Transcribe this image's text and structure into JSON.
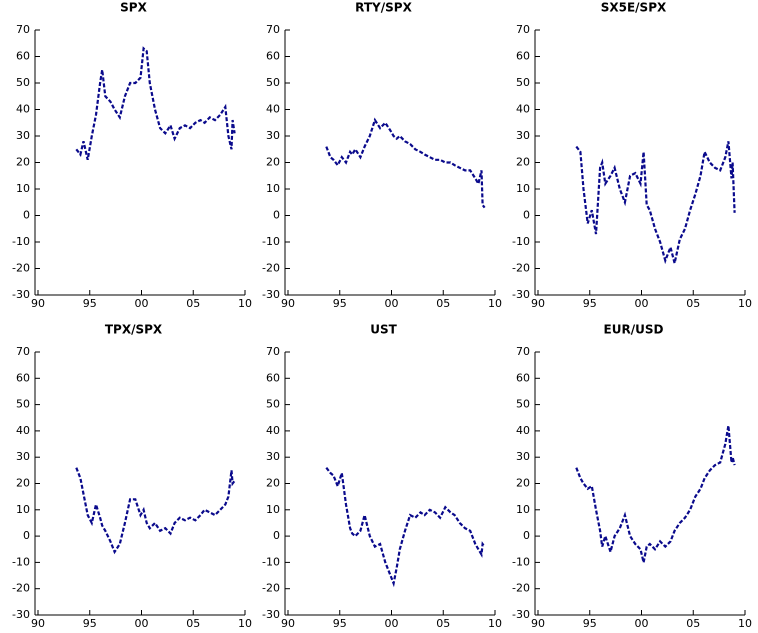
{
  "chart_data": [
    {
      "type": "line",
      "title": "SPX",
      "color": "#0a0a8c",
      "x": [
        1993.7,
        1994.1,
        1994.4,
        1994.8,
        1995.2,
        1995.6,
        1996.0,
        1996.2,
        1996.5,
        1997.0,
        1997.4,
        1997.9,
        1998.4,
        1998.9,
        1999.4,
        1999.9,
        2000.2,
        2000.5,
        2000.8,
        2001.3,
        2001.8,
        2002.3,
        2002.8,
        2003.2,
        2003.7,
        2004.2,
        2004.7,
        2005.2,
        2005.7,
        2006.1,
        2006.6,
        2007.1,
        2007.6,
        2008.1,
        2008.4,
        2008.7,
        2008.8,
        2009.0
      ],
      "values": [
        25,
        23,
        28,
        21,
        30,
        38,
        50,
        55,
        45,
        43,
        40,
        37,
        45,
        50,
        50,
        52,
        63,
        62,
        50,
        40,
        33,
        31,
        34,
        29,
        33,
        34,
        33,
        35,
        36,
        35,
        37,
        36,
        38,
        41,
        30,
        25,
        36,
        31
      ],
      "xlim": [
        1990,
        2010
      ],
      "ylim": [
        -30,
        70
      ],
      "xticks": [
        {
          "value": 1990,
          "label": "90"
        },
        {
          "value": 1995,
          "label": "95"
        },
        {
          "value": 2000,
          "label": "00"
        },
        {
          "value": 2005,
          "label": "05"
        },
        {
          "value": 2010,
          "label": "10"
        }
      ],
      "yticks": [
        -30,
        -20,
        -10,
        0,
        10,
        20,
        30,
        40,
        50,
        60,
        70
      ]
    },
    {
      "type": "line",
      "title": "RTY/SPX",
      "color": "#0a0a8c",
      "x": [
        1993.7,
        1994.1,
        1994.4,
        1994.8,
        1995.2,
        1995.6,
        1996.0,
        1996.2,
        1996.5,
        1997.0,
        1997.4,
        1997.9,
        1998.4,
        1998.9,
        1999.4,
        1999.9,
        2000.2,
        2000.5,
        2000.8,
        2001.3,
        2001.8,
        2002.3,
        2002.8,
        2003.2,
        2003.7,
        2004.2,
        2004.7,
        2005.2,
        2005.7,
        2006.1,
        2006.6,
        2007.1,
        2007.6,
        2008.1,
        2008.4,
        2008.7,
        2008.8,
        2009.0
      ],
      "values": [
        26,
        22,
        21,
        19,
        22,
        20,
        24,
        23,
        25,
        22,
        26,
        30,
        36,
        33,
        35,
        32,
        30,
        29,
        30,
        28,
        27,
        25,
        24,
        23,
        22,
        21,
        21,
        20,
        20,
        19,
        18,
        17,
        17,
        14,
        12,
        17,
        4,
        3
      ],
      "xlim": [
        1990,
        2010
      ],
      "ylim": [
        -30,
        70
      ],
      "xticks": [
        {
          "value": 1990,
          "label": "90"
        },
        {
          "value": 1995,
          "label": "95"
        },
        {
          "value": 2000,
          "label": "00"
        },
        {
          "value": 2005,
          "label": "05"
        },
        {
          "value": 2010,
          "label": "10"
        }
      ],
      "yticks": [
        -30,
        -20,
        -10,
        0,
        10,
        20,
        30,
        40,
        50,
        60,
        70
      ]
    },
    {
      "type": "line",
      "title": "SX5E/SPX",
      "color": "#0a0a8c",
      "x": [
        1993.7,
        1994.1,
        1994.4,
        1994.8,
        1995.2,
        1995.6,
        1996.0,
        1996.2,
        1996.5,
        1997.0,
        1997.4,
        1997.9,
        1998.4,
        1998.9,
        1999.4,
        1999.9,
        2000.2,
        2000.5,
        2000.8,
        2001.3,
        2001.8,
        2002.3,
        2002.8,
        2003.2,
        2003.7,
        2004.2,
        2004.7,
        2005.2,
        2005.7,
        2006.1,
        2006.6,
        2007.1,
        2007.6,
        2008.1,
        2008.4,
        2008.7,
        2008.8,
        2009.0
      ],
      "values": [
        26,
        24,
        10,
        -3,
        2,
        -7,
        18,
        20,
        12,
        15,
        18,
        10,
        5,
        15,
        16,
        12,
        24,
        4,
        2,
        -5,
        -10,
        -17,
        -12,
        -18,
        -9,
        -5,
        2,
        8,
        15,
        24,
        20,
        18,
        17,
        22,
        28,
        14,
        20,
        1
      ],
      "xlim": [
        1990,
        2010
      ],
      "ylim": [
        -30,
        70
      ],
      "xticks": [
        {
          "value": 1990,
          "label": "90"
        },
        {
          "value": 1995,
          "label": "95"
        },
        {
          "value": 2000,
          "label": "00"
        },
        {
          "value": 2005,
          "label": "05"
        },
        {
          "value": 2010,
          "label": "10"
        }
      ],
      "yticks": [
        -30,
        -20,
        -10,
        0,
        10,
        20,
        30,
        40,
        50,
        60,
        70
      ]
    },
    {
      "type": "line",
      "title": "TPX/SPX",
      "color": "#0a0a8c",
      "x": [
        1993.7,
        1994.1,
        1994.4,
        1994.8,
        1995.2,
        1995.6,
        1996.0,
        1996.2,
        1996.5,
        1997.0,
        1997.4,
        1997.9,
        1998.4,
        1998.9,
        1999.4,
        1999.9,
        2000.2,
        2000.5,
        2000.8,
        2001.3,
        2001.8,
        2002.3,
        2002.8,
        2003.2,
        2003.7,
        2004.2,
        2004.7,
        2005.2,
        2005.7,
        2006.1,
        2006.6,
        2007.1,
        2007.6,
        2008.1,
        2008.4,
        2008.7,
        2008.8,
        2009.0
      ],
      "values": [
        26,
        22,
        16,
        8,
        5,
        12,
        7,
        4,
        2,
        -2,
        -6,
        -3,
        5,
        14,
        14,
        8,
        10,
        5,
        3,
        5,
        2,
        3,
        1,
        5,
        7,
        6,
        7,
        6,
        8,
        10,
        9,
        8,
        10,
        12,
        15,
        25,
        20,
        21
      ],
      "xlim": [
        1990,
        2010
      ],
      "ylim": [
        -30,
        70
      ],
      "xticks": [
        {
          "value": 1990,
          "label": "90"
        },
        {
          "value": 1995,
          "label": "95"
        },
        {
          "value": 2000,
          "label": "00"
        },
        {
          "value": 2005,
          "label": "05"
        },
        {
          "value": 2010,
          "label": "10"
        }
      ],
      "yticks": [
        -30,
        -20,
        -10,
        0,
        10,
        20,
        30,
        40,
        50,
        60,
        70
      ]
    },
    {
      "type": "line",
      "title": "UST",
      "color": "#0a0a8c",
      "x": [
        1993.7,
        1994.1,
        1994.4,
        1994.8,
        1995.2,
        1995.6,
        1996.0,
        1996.2,
        1996.5,
        1997.0,
        1997.4,
        1997.9,
        1998.4,
        1998.9,
        1999.4,
        1999.9,
        2000.2,
        2000.5,
        2000.8,
        2001.3,
        2001.8,
        2002.3,
        2002.8,
        2003.2,
        2003.7,
        2004.2,
        2004.7,
        2005.2,
        2005.7,
        2006.1,
        2006.6,
        2007.1,
        2007.6,
        2008.1,
        2008.4,
        2008.7,
        2008.8,
        2009.0
      ],
      "values": [
        26,
        24,
        23,
        19,
        24,
        12,
        3,
        1,
        0,
        2,
        8,
        0,
        -4,
        -3,
        -10,
        -15,
        -18,
        -12,
        -5,
        2,
        8,
        7,
        9,
        8,
        10,
        9,
        7,
        11,
        9,
        8,
        5,
        3,
        2,
        -3,
        -5,
        -7,
        -3,
        -4
      ],
      "xlim": [
        1990,
        2010
      ],
      "ylim": [
        -30,
        70
      ],
      "xticks": [
        {
          "value": 1990,
          "label": "90"
        },
        {
          "value": 1995,
          "label": "95"
        },
        {
          "value": 2000,
          "label": "00"
        },
        {
          "value": 2005,
          "label": "05"
        },
        {
          "value": 2010,
          "label": "10"
        }
      ],
      "yticks": [
        -30,
        -20,
        -10,
        0,
        10,
        20,
        30,
        40,
        50,
        60,
        70
      ]
    },
    {
      "type": "line",
      "title": "EUR/USD",
      "color": "#0a0a8c",
      "x": [
        1993.7,
        1994.1,
        1994.4,
        1994.8,
        1995.2,
        1995.6,
        1996.0,
        1996.2,
        1996.5,
        1997.0,
        1997.4,
        1997.9,
        1998.4,
        1998.9,
        1999.4,
        1999.9,
        2000.2,
        2000.5,
        2000.8,
        2001.3,
        2001.8,
        2002.3,
        2002.8,
        2003.2,
        2003.7,
        2004.2,
        2004.7,
        2005.2,
        2005.7,
        2006.1,
        2006.6,
        2007.1,
        2007.6,
        2008.1,
        2008.4,
        2008.7,
        2008.8,
        2009.0
      ],
      "values": [
        26,
        22,
        20,
        18,
        19,
        10,
        2,
        -4,
        0,
        -6,
        0,
        3,
        8,
        0,
        -3,
        -5,
        -10,
        -4,
        -3,
        -5,
        -2,
        -4,
        -2,
        2,
        5,
        7,
        10,
        15,
        18,
        22,
        25,
        27,
        28,
        35,
        42,
        28,
        30,
        27
      ],
      "xlim": [
        1990,
        2010
      ],
      "ylim": [
        -30,
        70
      ],
      "xticks": [
        {
          "value": 1990,
          "label": "90"
        },
        {
          "value": 1995,
          "label": "95"
        },
        {
          "value": 2000,
          "label": "00"
        },
        {
          "value": 2005,
          "label": "05"
        },
        {
          "value": 2010,
          "label": "10"
        }
      ],
      "yticks": [
        -30,
        -20,
        -10,
        0,
        10,
        20,
        30,
        40,
        50,
        60,
        70
      ]
    }
  ]
}
